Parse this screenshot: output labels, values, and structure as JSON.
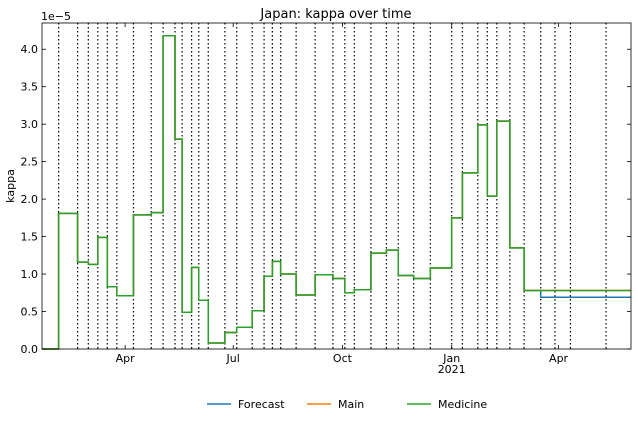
{
  "chart_data": {
    "type": "line",
    "title": "Japan: kappa over time",
    "xlabel": "",
    "ylabel": "kappa",
    "y_scale_label": "1e−5",
    "y_multiplier": 1e-05,
    "xlim": [
      "2020-01-22",
      "2021-06-01"
    ],
    "ylim": [
      0,
      4.35
    ],
    "x_ticks": [
      {
        "date": "2020-04-01",
        "label": "Apr"
      },
      {
        "date": "2020-07-01",
        "label": "Jul"
      },
      {
        "date": "2020-10-01",
        "label": "Oct"
      },
      {
        "date": "2021-01-01",
        "label": "Jan",
        "sublabel": "2021"
      },
      {
        "date": "2021-04-01",
        "label": "Apr"
      }
    ],
    "y_ticks": [
      0.0,
      0.5,
      1.0,
      1.5,
      2.0,
      2.5,
      3.0,
      3.5,
      4.0
    ],
    "y_tick_labels": [
      "0.0",
      "0.5",
      "1.0",
      "1.5",
      "2.0",
      "2.5",
      "3.0",
      "3.5",
      "4.0"
    ],
    "change_points": [
      "2020-02-05",
      "2020-02-21",
      "2020-03-01",
      "2020-03-09",
      "2020-03-17",
      "2020-03-25",
      "2020-04-08",
      "2020-04-23",
      "2020-05-03",
      "2020-05-13",
      "2020-05-19",
      "2020-05-27",
      "2020-06-02",
      "2020-06-10",
      "2020-06-24",
      "2020-07-04",
      "2020-07-17",
      "2020-07-27",
      "2020-08-03",
      "2020-08-10",
      "2020-08-23",
      "2020-09-08",
      "2020-09-23",
      "2020-10-03",
      "2020-10-11",
      "2020-10-25",
      "2020-11-07",
      "2020-11-17",
      "2020-11-30",
      "2020-12-14",
      "2021-01-01",
      "2021-01-10",
      "2021-01-23",
      "2021-01-31",
      "2021-02-08",
      "2021-02-19",
      "2021-03-03",
      "2021-03-17",
      "2021-03-29",
      "2021-04-11",
      "2021-05-11"
    ],
    "series": [
      {
        "name": "Forecast",
        "color": "#1f77b4",
        "x": [
          "2020-01-22",
          "2020-02-05",
          "2020-02-21",
          "2020-03-01",
          "2020-03-09",
          "2020-03-17",
          "2020-03-25",
          "2020-04-08",
          "2020-04-23",
          "2020-05-03",
          "2020-05-13",
          "2020-05-19",
          "2020-05-27",
          "2020-06-02",
          "2020-06-10",
          "2020-06-24",
          "2020-07-04",
          "2020-07-17",
          "2020-07-27",
          "2020-08-03",
          "2020-08-10",
          "2020-08-23",
          "2020-09-08",
          "2020-09-23",
          "2020-10-03",
          "2020-10-11",
          "2020-10-25",
          "2020-11-07",
          "2020-11-17",
          "2020-11-30",
          "2020-12-14",
          "2021-01-01",
          "2021-01-10",
          "2021-01-23",
          "2021-01-31",
          "2021-02-08",
          "2021-02-19",
          "2021-03-03",
          "2021-03-17",
          "2021-03-29",
          "2021-04-11",
          "2021-06-01"
        ],
        "y": [
          0.0,
          1.81,
          1.16,
          1.13,
          1.49,
          0.83,
          0.71,
          1.79,
          1.82,
          4.18,
          2.8,
          0.49,
          1.09,
          0.65,
          0.08,
          0.22,
          0.29,
          0.51,
          0.97,
          1.17,
          1.0,
          0.72,
          0.99,
          0.94,
          0.75,
          0.79,
          1.28,
          1.32,
          0.98,
          0.94,
          1.08,
          1.75,
          2.35,
          2.99,
          2.04,
          3.04,
          1.35,
          0.78,
          0.69,
          0.69,
          0.69,
          0.69
        ]
      },
      {
        "name": "Main",
        "color": "#ff7f0e",
        "x": [
          "2020-01-22",
          "2020-02-05",
          "2020-02-21",
          "2020-03-01",
          "2020-03-09",
          "2020-03-17",
          "2020-03-25",
          "2020-04-08",
          "2020-04-23",
          "2020-05-03",
          "2020-05-13",
          "2020-05-19",
          "2020-05-27",
          "2020-06-02",
          "2020-06-10",
          "2020-06-24",
          "2020-07-04",
          "2020-07-17",
          "2020-07-27",
          "2020-08-03",
          "2020-08-10",
          "2020-08-23",
          "2020-09-08",
          "2020-09-23",
          "2020-10-03",
          "2020-10-11",
          "2020-10-25",
          "2020-11-07",
          "2020-11-17",
          "2020-11-30",
          "2020-12-14",
          "2021-01-01",
          "2021-01-10",
          "2021-01-23",
          "2021-01-31",
          "2021-02-08",
          "2021-02-19",
          "2021-03-03",
          "2021-03-17",
          "2021-03-29",
          "2021-04-11",
          "2021-06-01"
        ],
        "y": [
          0.0,
          1.81,
          1.16,
          1.13,
          1.49,
          0.83,
          0.71,
          1.79,
          1.82,
          4.18,
          2.8,
          0.49,
          1.09,
          0.65,
          0.08,
          0.22,
          0.29,
          0.51,
          0.97,
          1.17,
          1.0,
          0.72,
          0.99,
          0.94,
          0.75,
          0.79,
          1.28,
          1.32,
          0.98,
          0.94,
          1.08,
          1.75,
          2.35,
          2.99,
          2.04,
          3.04,
          1.35,
          0.78,
          0.78,
          0.78,
          0.78,
          0.78
        ]
      },
      {
        "name": "Medicine",
        "color": "#2ca02c",
        "x": [
          "2020-01-22",
          "2020-02-05",
          "2020-02-21",
          "2020-03-01",
          "2020-03-09",
          "2020-03-17",
          "2020-03-25",
          "2020-04-08",
          "2020-04-23",
          "2020-05-03",
          "2020-05-13",
          "2020-05-19",
          "2020-05-27",
          "2020-06-02",
          "2020-06-10",
          "2020-06-24",
          "2020-07-04",
          "2020-07-17",
          "2020-07-27",
          "2020-08-03",
          "2020-08-10",
          "2020-08-23",
          "2020-09-08",
          "2020-09-23",
          "2020-10-03",
          "2020-10-11",
          "2020-10-25",
          "2020-11-07",
          "2020-11-17",
          "2020-11-30",
          "2020-12-14",
          "2021-01-01",
          "2021-01-10",
          "2021-01-23",
          "2021-01-31",
          "2021-02-08",
          "2021-02-19",
          "2021-03-03",
          "2021-03-17",
          "2021-03-29",
          "2021-04-11",
          "2021-06-01"
        ],
        "y": [
          0.0,
          1.81,
          1.16,
          1.13,
          1.49,
          0.83,
          0.71,
          1.79,
          1.82,
          4.18,
          2.8,
          0.49,
          1.09,
          0.65,
          0.08,
          0.22,
          0.29,
          0.51,
          0.97,
          1.17,
          1.0,
          0.72,
          0.99,
          0.94,
          0.75,
          0.79,
          1.28,
          1.32,
          0.98,
          0.94,
          1.08,
          1.75,
          2.35,
          2.99,
          2.04,
          3.04,
          1.35,
          0.78,
          0.78,
          0.78,
          0.78,
          0.78
        ]
      }
    ],
    "legend": {
      "placement": "bottom-center",
      "entries": [
        "Forecast",
        "Main",
        "Medicine"
      ]
    },
    "grid": false
  }
}
